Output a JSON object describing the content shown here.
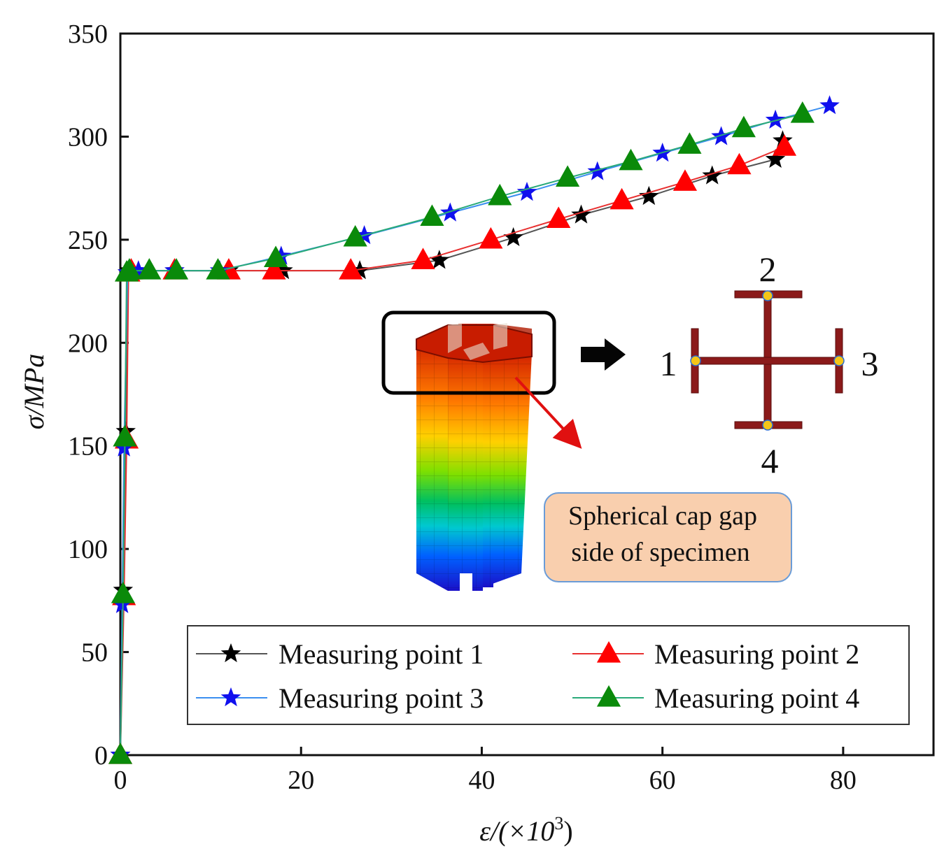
{
  "chart_data": {
    "type": "line",
    "xlabel": "ε/(×10",
    "xlabel_sup": "3",
    "xlabel_close": ")",
    "ylabel": "σ/MPa",
    "xlim": [
      0,
      90
    ],
    "ylim": [
      0,
      350
    ],
    "xticks": [
      "0",
      "20",
      "40",
      "60",
      "80"
    ],
    "yticks": [
      "0",
      "50",
      "100",
      "150",
      "200",
      "250",
      "300",
      "350"
    ],
    "grid": false,
    "legend_position": "bottom-right",
    "series": [
      {
        "name": "Measuring point 1",
        "color": "#555555",
        "marker": "star",
        "marker_color": "#000000",
        "x": [
          0,
          0.3,
          0.6,
          0.8,
          1.0,
          6,
          12,
          18,
          26.5,
          35.3,
          43.5,
          51,
          58.5,
          65.5,
          72.5,
          73.3
        ],
        "y": [
          0,
          80,
          157,
          234,
          235,
          235,
          235,
          235,
          235,
          240,
          251,
          262,
          271,
          281,
          289,
          298
        ]
      },
      {
        "name": "Measuring point 2",
        "color": "#e83030",
        "marker": "triangle",
        "marker_color": "#ff0000",
        "x": [
          0,
          0.4,
          0.7,
          0.9,
          1.2,
          6,
          12,
          17,
          25.5,
          33.5,
          41,
          48.5,
          55.5,
          62.5,
          68.5,
          73.5
        ],
        "y": [
          0,
          77,
          153,
          234,
          235,
          235,
          235,
          235,
          235,
          240,
          250,
          260,
          269,
          278,
          286,
          295
        ]
      },
      {
        "name": "Measuring point 3",
        "color": "#3b8ff0",
        "marker": "star",
        "marker_color": "#1010ee",
        "x": [
          0,
          0.2,
          0.4,
          0.8,
          2,
          6,
          11,
          17.8,
          27,
          36.5,
          45,
          52.8,
          60,
          66.5,
          72.5,
          78.5
        ],
        "y": [
          0,
          73,
          149,
          234,
          235,
          235,
          235,
          242,
          252,
          263,
          273,
          283,
          292,
          300,
          308,
          315
        ]
      },
      {
        "name": "Measuring point 4",
        "color": "#2aaa7a",
        "marker": "triangle",
        "marker_color": "#0a8a0a",
        "x": [
          0,
          0.3,
          0.5,
          0.7,
          1.0,
          3.2,
          6.2,
          10.8,
          17.2,
          26,
          34.5,
          42,
          49.5,
          56.5,
          63,
          69,
          75.5
        ],
        "y": [
          0,
          78,
          154,
          234,
          235,
          235,
          235,
          235,
          241,
          251,
          261,
          271,
          280,
          288,
          296,
          304,
          311
        ]
      }
    ]
  },
  "diagram": {
    "labels": [
      "1",
      "2",
      "3",
      "4"
    ],
    "note": [
      "Spherical cap gap",
      "side of specimen"
    ]
  }
}
